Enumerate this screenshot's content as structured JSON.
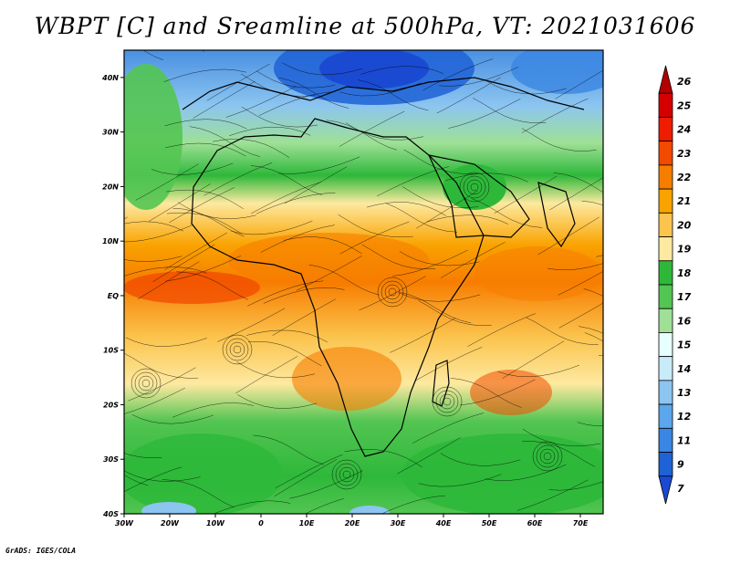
{
  "title": "WBPT [C] and Sreamline at 500hPa, VT: 2021031606",
  "credit": "GrADS: IGES/COLA",
  "map": {
    "lat_labels": [
      "40N",
      "30N",
      "20N",
      "10N",
      "EQ",
      "10S",
      "20S",
      "30S",
      "40S"
    ],
    "lon_labels": [
      "30W",
      "20W",
      "10W",
      "0",
      "10E",
      "20E",
      "30E",
      "40E",
      "50E",
      "60E",
      "70E"
    ],
    "lat_range": [
      -40,
      45
    ],
    "lon_range": [
      -30,
      75
    ]
  },
  "colorbar": {
    "labels": [
      "26",
      "25",
      "24",
      "23",
      "22",
      "21",
      "20",
      "19",
      "18",
      "17",
      "16",
      "15",
      "14",
      "13",
      "12",
      "11",
      "9",
      "7"
    ],
    "colors": [
      "#b50000",
      "#d40000",
      "#ee1c00",
      "#f24a00",
      "#f77d00",
      "#f9a300",
      "#fbc44e",
      "#fde9a0",
      "#2eb83a",
      "#53c552",
      "#9fe096",
      "#e6ffff",
      "#c8ebf8",
      "#8cc5f0",
      "#5ca6ec",
      "#3a86e2",
      "#1f62d6",
      "#1a4ad2"
    ]
  }
}
